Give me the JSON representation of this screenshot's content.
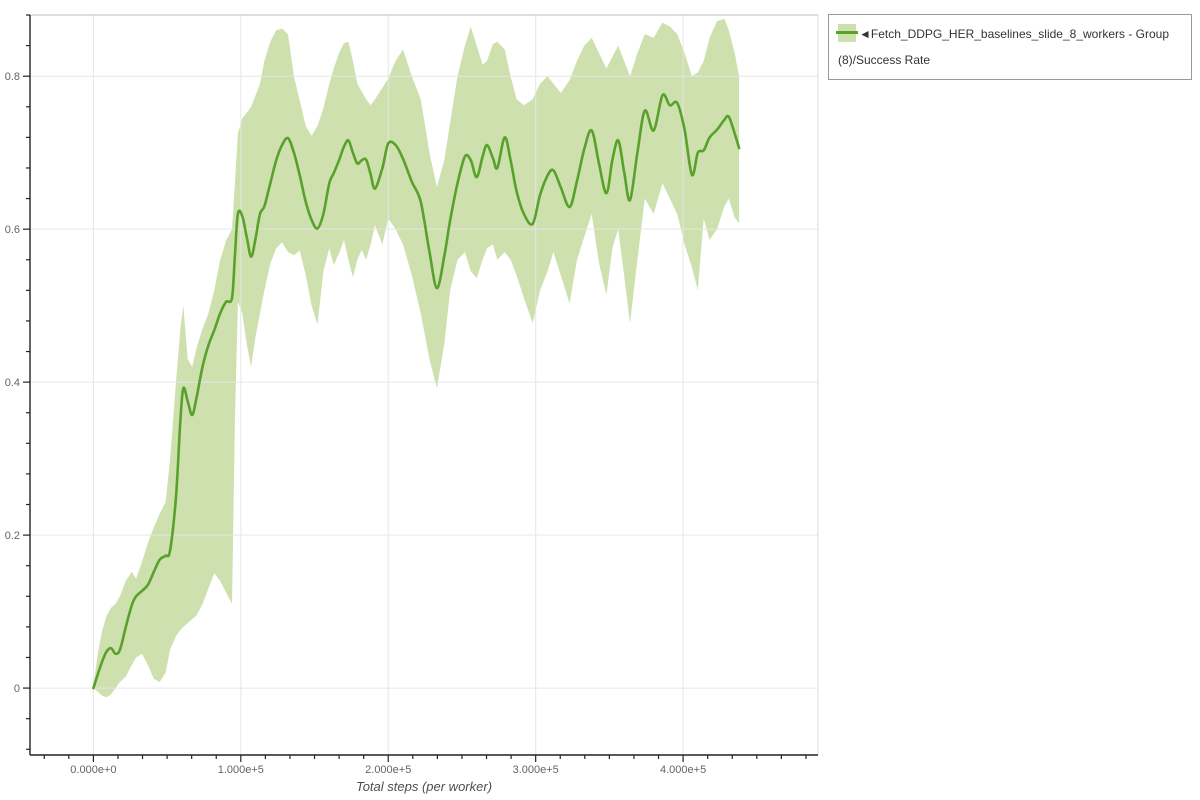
{
  "axis": {
    "x_title": "Total steps (per worker)"
  },
  "legend": {
    "label": "◄Fetch_DDPG_HER_baselines_slide_8_workers - Group (8)/Success Rate",
    "border_color": "#9a9a9a",
    "text_color": "#333333"
  },
  "colors": {
    "grid": "#e6e6e6",
    "frame_top": "#bdbdbd",
    "frame_right": "#dedede",
    "axis_line": "#222222",
    "tick_label": "#646464"
  },
  "chart_data": {
    "type": "line",
    "title": "",
    "xlabel": "Total steps (per worker)",
    "ylabel": "Success Rate",
    "grid": true,
    "legend_position": "top-right",
    "x_domain": [
      -43000,
      491500
    ],
    "y_domain": [
      -0.0875,
      0.88
    ],
    "x_ticks": {
      "majors": [
        {
          "v": 0,
          "label": "0.000e+0"
        },
        {
          "v": 100000,
          "label": "1.000e+5"
        },
        {
          "v": 200000,
          "label": "2.000e+5"
        },
        {
          "v": 300000,
          "label": "3.000e+5"
        },
        {
          "v": 400000,
          "label": "4.000e+5"
        }
      ],
      "minor_step": 16666.667,
      "minor_range": [
        -33333.33,
        483333.33
      ]
    },
    "y_ticks": {
      "majors": [
        {
          "v": 0,
          "label": "0"
        },
        {
          "v": 0.2,
          "label": "0.2"
        },
        {
          "v": 0.4,
          "label": "0.4"
        },
        {
          "v": 0.6,
          "label": "0.6"
        },
        {
          "v": 0.8,
          "label": "0.8"
        }
      ],
      "minor_step": 0.04,
      "minor_range": [
        -0.08,
        0.88
      ]
    },
    "series": [
      {
        "name": "Fetch_DDPG_HER_baselines_slide_8_workers - Group (8)/Success Rate",
        "color": "#58a12b",
        "band_fill": "#cde0ae",
        "x": [
          0,
          3000,
          6000,
          9000,
          12000,
          15000,
          18000,
          22000,
          26000,
          29000,
          33000,
          37000,
          41000,
          45000,
          49000,
          52000,
          56000,
          59000,
          61000,
          64000,
          67000,
          70000,
          74000,
          78000,
          82000,
          86000,
          90000,
          94000,
          96000,
          98000,
          101000,
          104000,
          107000,
          110000,
          113000,
          116000,
          120000,
          124000,
          128000,
          132000,
          136000,
          140000,
          144000,
          148000,
          152000,
          156000,
          160000,
          163000,
          167000,
          170000,
          173000,
          176000,
          179000,
          182000,
          185000,
          188000,
          191000,
          196000,
          200000,
          205000,
          210000,
          216000,
          222000,
          228000,
          233000,
          238000,
          242000,
          247000,
          252000,
          256000,
          260000,
          264000,
          267000,
          271000,
          274000,
          279000,
          283000,
          287000,
          292000,
          298000,
          303000,
          308000,
          312000,
          317000,
          323000,
          328000,
          333000,
          338000,
          343000,
          348000,
          352000,
          356000,
          360000,
          364000,
          369000,
          374000,
          380000,
          386000,
          391000,
          396000,
          401000,
          406000,
          410000,
          414000,
          418000,
          423000,
          428000,
          431000,
          435000,
          438000
        ],
        "mean": [
          0.0,
          0.018,
          0.035,
          0.048,
          0.052,
          0.045,
          0.05,
          0.08,
          0.108,
          0.12,
          0.127,
          0.135,
          0.152,
          0.168,
          0.173,
          0.18,
          0.25,
          0.35,
          0.392,
          0.375,
          0.357,
          0.38,
          0.42,
          0.448,
          0.468,
          0.49,
          0.505,
          0.51,
          0.565,
          0.62,
          0.617,
          0.59,
          0.564,
          0.588,
          0.62,
          0.63,
          0.66,
          0.69,
          0.71,
          0.719,
          0.7,
          0.67,
          0.636,
          0.612,
          0.601,
          0.62,
          0.66,
          0.673,
          0.692,
          0.708,
          0.716,
          0.7,
          0.686,
          0.69,
          0.691,
          0.672,
          0.653,
          0.68,
          0.712,
          0.71,
          0.692,
          0.662,
          0.636,
          0.57,
          0.523,
          0.565,
          0.612,
          0.66,
          0.695,
          0.69,
          0.668,
          0.695,
          0.71,
          0.693,
          0.68,
          0.72,
          0.69,
          0.65,
          0.62,
          0.607,
          0.645,
          0.67,
          0.677,
          0.655,
          0.629,
          0.663,
          0.705,
          0.729,
          0.685,
          0.647,
          0.69,
          0.716,
          0.675,
          0.638,
          0.7,
          0.755,
          0.729,
          0.775,
          0.762,
          0.765,
          0.73,
          0.671,
          0.7,
          0.703,
          0.72,
          0.73,
          0.743,
          0.747,
          0.725,
          0.706
        ],
        "lower": [
          0.0,
          -0.005,
          -0.01,
          -0.012,
          -0.008,
          0.0,
          0.008,
          0.015,
          0.03,
          0.04,
          0.045,
          0.03,
          0.012,
          0.008,
          0.02,
          0.05,
          0.068,
          0.076,
          0.08,
          0.085,
          0.09,
          0.095,
          0.11,
          0.13,
          0.15,
          0.14,
          0.125,
          0.11,
          0.35,
          0.505,
          0.49,
          0.45,
          0.42,
          0.46,
          0.49,
          0.52,
          0.555,
          0.575,
          0.583,
          0.57,
          0.566,
          0.572,
          0.54,
          0.5,
          0.475,
          0.545,
          0.575,
          0.553,
          0.57,
          0.586,
          0.56,
          0.537,
          0.56,
          0.573,
          0.56,
          0.58,
          0.605,
          0.58,
          0.614,
          0.6,
          0.58,
          0.54,
          0.49,
          0.43,
          0.392,
          0.45,
          0.52,
          0.56,
          0.57,
          0.545,
          0.536,
          0.56,
          0.575,
          0.58,
          0.56,
          0.57,
          0.56,
          0.54,
          0.51,
          0.477,
          0.52,
          0.545,
          0.57,
          0.54,
          0.503,
          0.56,
          0.59,
          0.62,
          0.555,
          0.514,
          0.575,
          0.6,
          0.54,
          0.477,
          0.56,
          0.64,
          0.62,
          0.66,
          0.64,
          0.62,
          0.58,
          0.55,
          0.52,
          0.614,
          0.586,
          0.6,
          0.63,
          0.64,
          0.615,
          0.608
        ],
        "upper": [
          0.003,
          0.045,
          0.075,
          0.095,
          0.105,
          0.11,
          0.12,
          0.14,
          0.152,
          0.143,
          0.165,
          0.19,
          0.21,
          0.228,
          0.243,
          0.3,
          0.4,
          0.47,
          0.5,
          0.43,
          0.42,
          0.445,
          0.47,
          0.49,
          0.52,
          0.56,
          0.585,
          0.6,
          0.66,
          0.725,
          0.745,
          0.752,
          0.76,
          0.775,
          0.79,
          0.82,
          0.845,
          0.86,
          0.862,
          0.855,
          0.8,
          0.768,
          0.735,
          0.722,
          0.735,
          0.758,
          0.79,
          0.81,
          0.832,
          0.843,
          0.845,
          0.82,
          0.79,
          0.78,
          0.77,
          0.762,
          0.77,
          0.785,
          0.797,
          0.82,
          0.835,
          0.8,
          0.77,
          0.7,
          0.655,
          0.69,
          0.74,
          0.8,
          0.84,
          0.865,
          0.84,
          0.815,
          0.82,
          0.842,
          0.845,
          0.835,
          0.8,
          0.77,
          0.762,
          0.77,
          0.79,
          0.8,
          0.79,
          0.778,
          0.795,
          0.82,
          0.84,
          0.85,
          0.83,
          0.81,
          0.825,
          0.84,
          0.82,
          0.8,
          0.83,
          0.855,
          0.85,
          0.87,
          0.865,
          0.855,
          0.83,
          0.8,
          0.805,
          0.82,
          0.85,
          0.872,
          0.875,
          0.86,
          0.83,
          0.8
        ]
      }
    ]
  }
}
